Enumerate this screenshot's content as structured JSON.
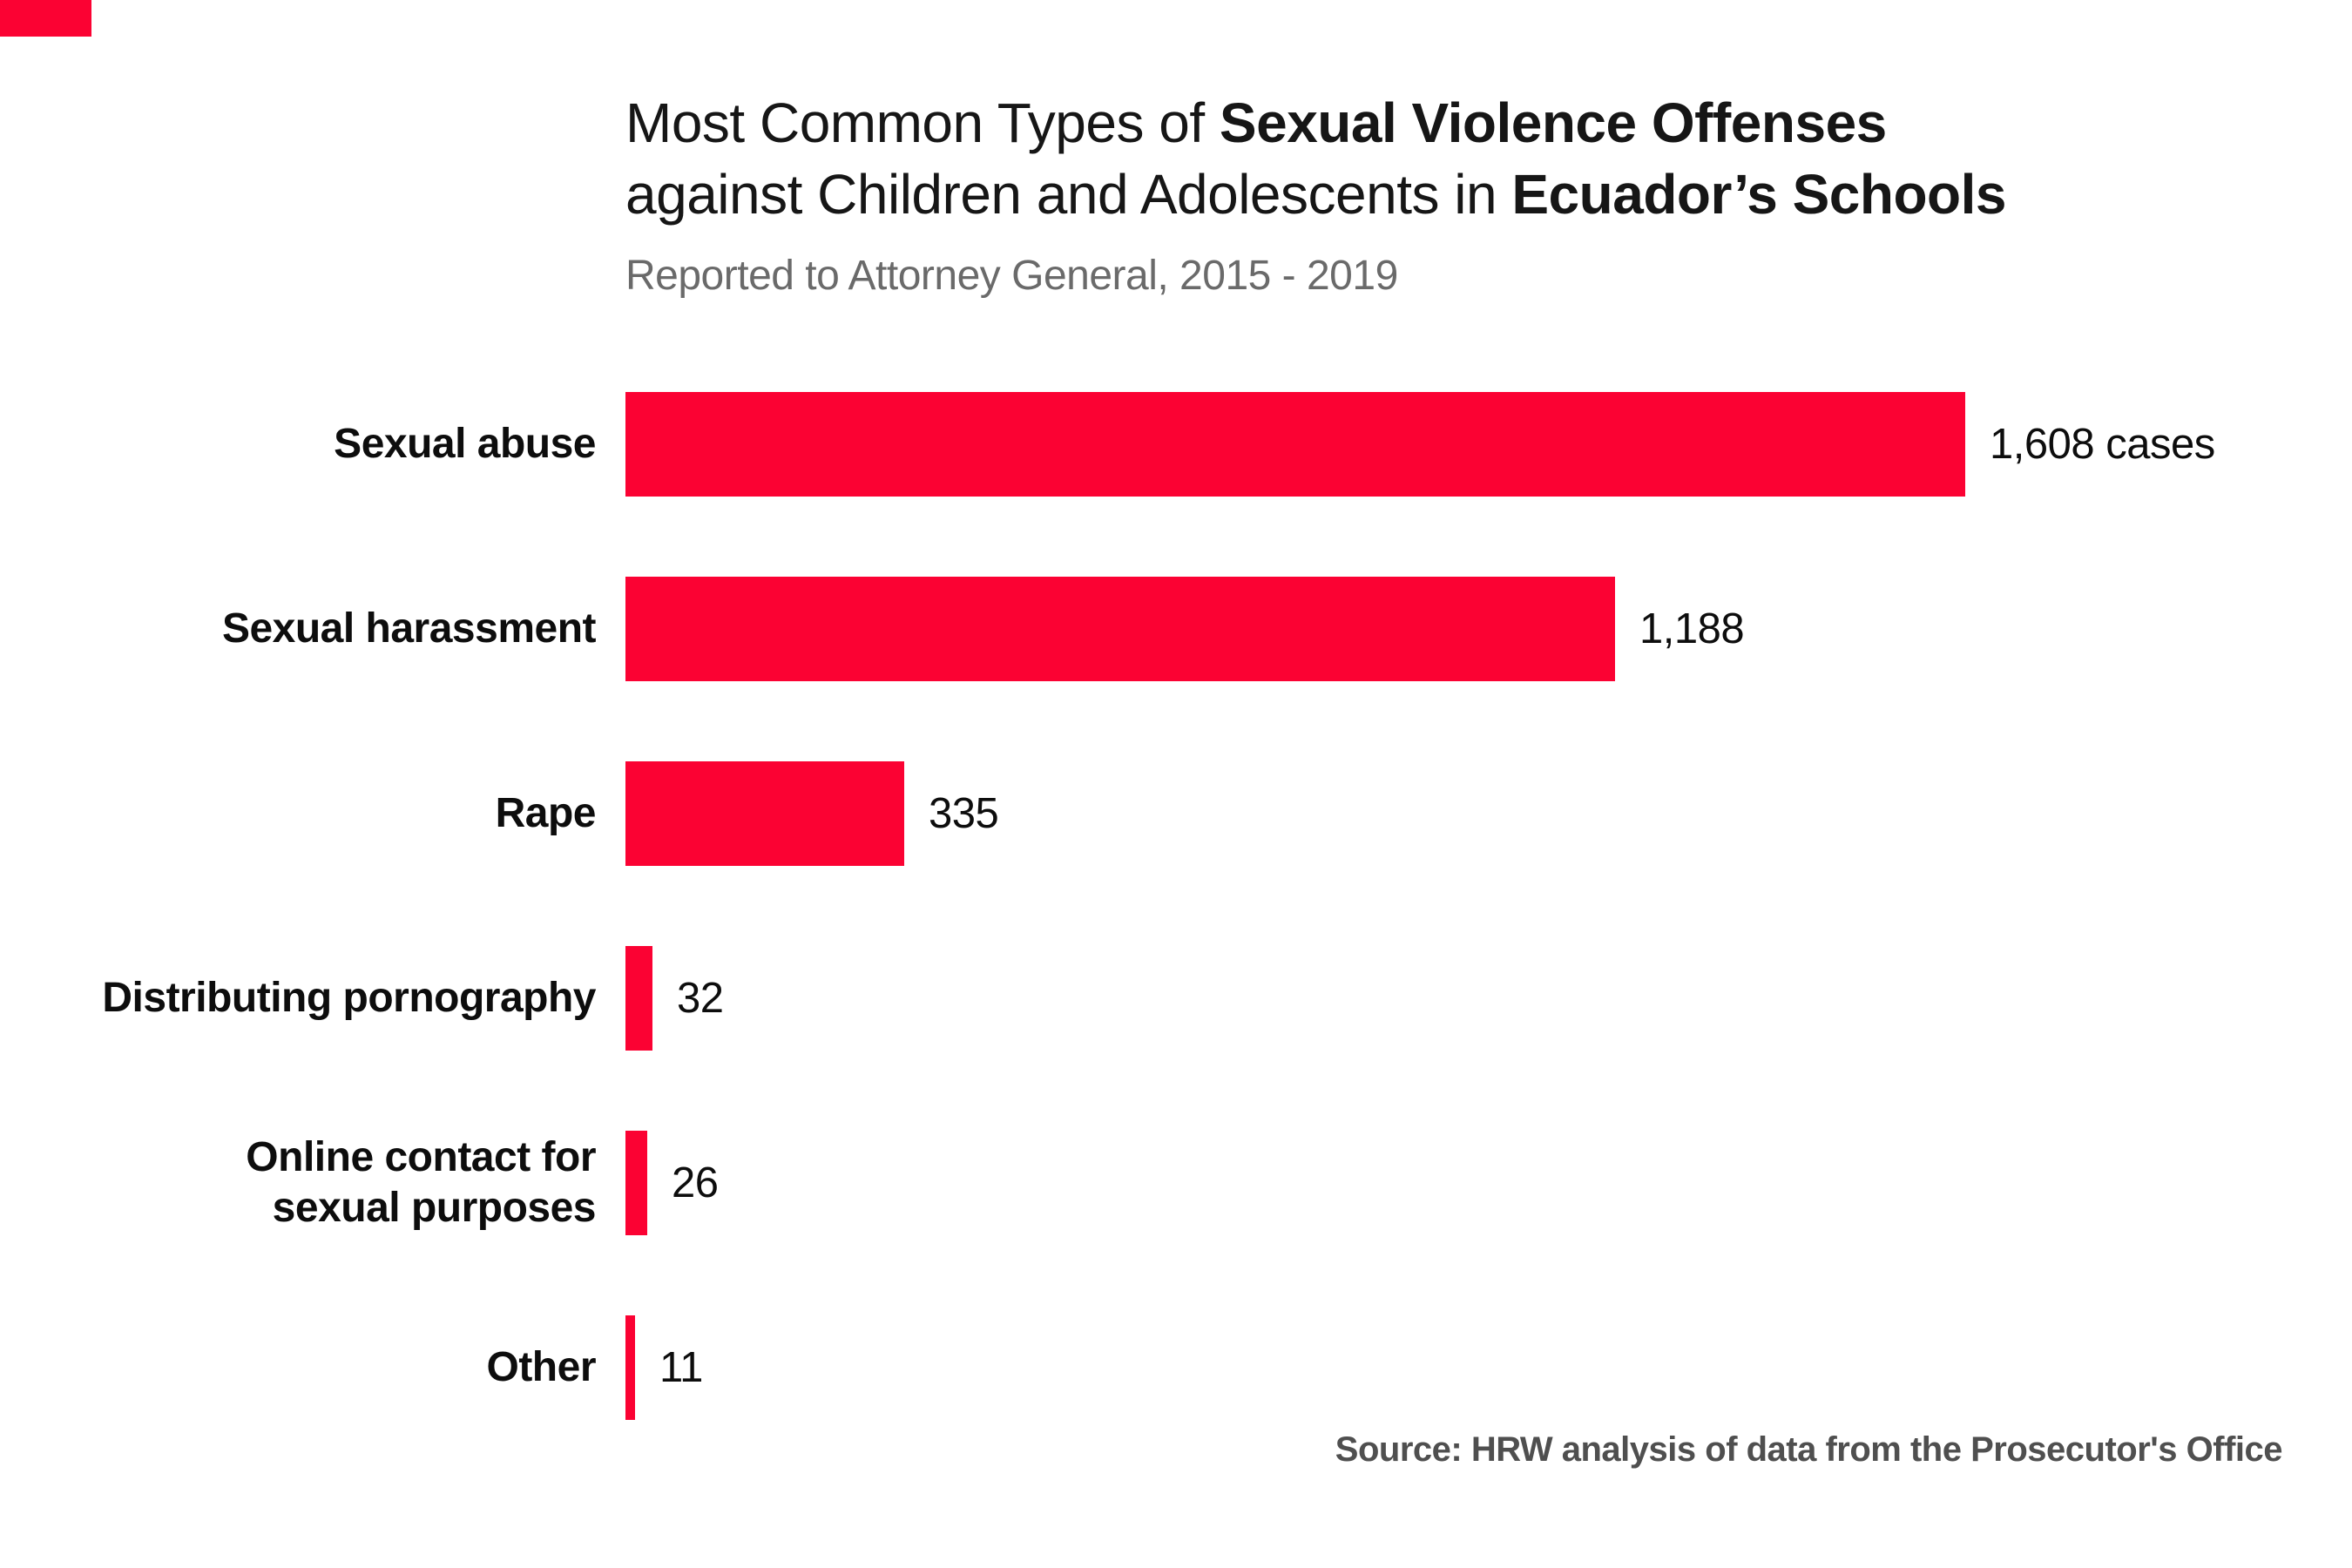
{
  "logo": {
    "color": "#FB0233"
  },
  "title": {
    "line1_regular": "Most Common Types of ",
    "line1_bold": "Sexual Violence Offenses",
    "line2_regular": "against Children and Adolescents in ",
    "line2_bold": "Ecuador’s Schools"
  },
  "subtitle": "Reported to Attorney General, 2015 - 2019",
  "source": "Source: HRW analysis of data from the Prosecutor's Office",
  "chart_data": {
    "type": "bar",
    "orientation": "horizontal",
    "title": "Most Common Types of Sexual Violence Offenses against Children and Adolescents in Ecuador's Schools",
    "subtitle": "Reported to Attorney General, 2015 - 2019",
    "xlim": [
      0,
      1608
    ],
    "grid": false,
    "legend": "none",
    "bar_color": "#FB0233",
    "categories": [
      "Sexual abuse",
      "Sexual harassment",
      "Rape",
      "Distributing pornography",
      "Online contact for sexual purposes",
      "Other"
    ],
    "values": [
      1608,
      1188,
      335,
      32,
      26,
      11
    ],
    "rows": [
      {
        "category": "Sexual abuse",
        "label_lines": [
          "Sexual abuse"
        ],
        "value": 1608,
        "value_label": "1,608 cases"
      },
      {
        "category": "Sexual harassment",
        "label_lines": [
          "Sexual harassment"
        ],
        "value": 1188,
        "value_label": "1,188"
      },
      {
        "category": "Rape",
        "label_lines": [
          "Rape"
        ],
        "value": 335,
        "value_label": "335"
      },
      {
        "category": "Distributing pornography",
        "label_lines": [
          "Distributing pornography"
        ],
        "value": 32,
        "value_label": "32"
      },
      {
        "category": "Online contact for sexual purposes",
        "label_lines": [
          "Online contact for",
          "sexual purposes"
        ],
        "value": 26,
        "value_label": "26"
      },
      {
        "category": "Other",
        "label_lines": [
          "Other"
        ],
        "value": 11,
        "value_label": "11"
      }
    ]
  },
  "layout_note": ""
}
